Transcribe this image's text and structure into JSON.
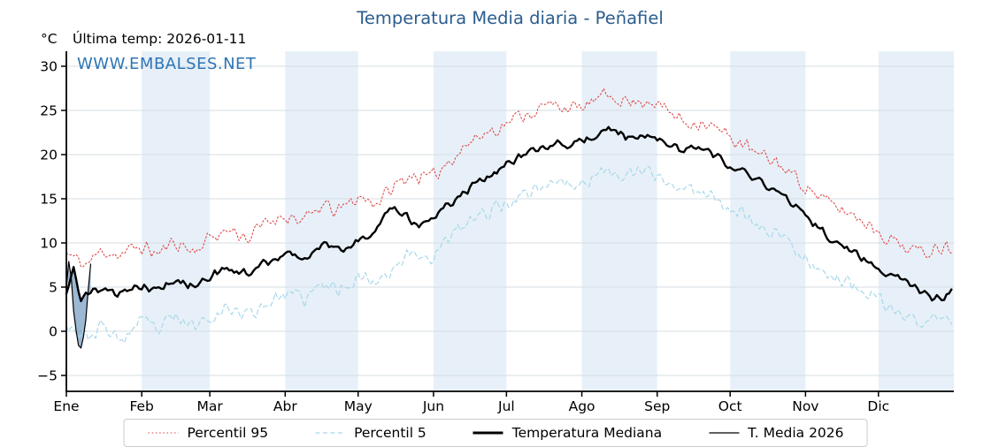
{
  "chart_data": {
    "type": "line",
    "title": "Temperatura Media diaria - Peñafiel",
    "ylabel": "°C",
    "last_temp_label": "Última temp: 2026-01-11",
    "watermark": "WWW.EMBALSES.NET",
    "x_months": [
      "Ene",
      "Feb",
      "Mar",
      "Abr",
      "May",
      "Jun",
      "Jul",
      "Ago",
      "Sep",
      "Oct",
      "Nov",
      "Dic"
    ],
    "month_start_days": [
      0,
      31,
      59,
      90,
      120,
      151,
      181,
      212,
      243,
      273,
      304,
      334
    ],
    "days_in_year": 365,
    "ylim": [
      -6.8,
      31.7
    ],
    "yticks": [
      -5,
      0,
      5,
      10,
      15,
      20,
      25,
      30
    ],
    "grid": true,
    "band_months": [
      1,
      3,
      5,
      7,
      9,
      11
    ],
    "band_color": "#e7f0f8",
    "grid_color": "#d5dce3",
    "legend_position": "bottom",
    "series": [
      {
        "name": "Percentil 95",
        "color": "#e04848",
        "style": "dotted",
        "width": 1.1,
        "jitter": 1.1,
        "control_points": [
          [
            0,
            8.8
          ],
          [
            8,
            7.5
          ],
          [
            15,
            9.2
          ],
          [
            22,
            8.6
          ],
          [
            30,
            9.6
          ],
          [
            38,
            8.8
          ],
          [
            45,
            10.2
          ],
          [
            52,
            9.0
          ],
          [
            60,
            10.8
          ],
          [
            68,
            11.5
          ],
          [
            75,
            10.5
          ],
          [
            82,
            12.3
          ],
          [
            90,
            13.2
          ],
          [
            98,
            12.4
          ],
          [
            105,
            14.2
          ],
          [
            112,
            13.6
          ],
          [
            120,
            15.2
          ],
          [
            128,
            14.6
          ],
          [
            135,
            16.4
          ],
          [
            142,
            17.8
          ],
          [
            150,
            17.2
          ],
          [
            158,
            19.6
          ],
          [
            165,
            21.2
          ],
          [
            172,
            22.4
          ],
          [
            180,
            23.4
          ],
          [
            188,
            24.6
          ],
          [
            195,
            25.2
          ],
          [
            202,
            25.8
          ],
          [
            210,
            25.0
          ],
          [
            218,
            26.2
          ],
          [
            225,
            26.8
          ],
          [
            232,
            25.8
          ],
          [
            240,
            26.3
          ],
          [
            248,
            24.8
          ],
          [
            255,
            23.6
          ],
          [
            262,
            23.8
          ],
          [
            270,
            22.4
          ],
          [
            278,
            21.2
          ],
          [
            285,
            19.8
          ],
          [
            292,
            19.2
          ],
          [
            300,
            17.4
          ],
          [
            308,
            15.6
          ],
          [
            315,
            14.2
          ],
          [
            322,
            13.4
          ],
          [
            330,
            12.2
          ],
          [
            338,
            10.6
          ],
          [
            345,
            9.6
          ],
          [
            352,
            8.8
          ],
          [
            358,
            9.8
          ],
          [
            364,
            9.4
          ]
        ]
      },
      {
        "name": "Percentil 5",
        "color": "#a8d8ea",
        "style": "dashed",
        "width": 1.2,
        "jitter": 1.1,
        "control_points": [
          [
            0,
            1.2
          ],
          [
            8,
            -0.8
          ],
          [
            15,
            0.6
          ],
          [
            22,
            -1.2
          ],
          [
            30,
            1.0
          ],
          [
            38,
            0.2
          ],
          [
            45,
            1.6
          ],
          [
            52,
            0.4
          ],
          [
            60,
            2.0
          ],
          [
            68,
            2.6
          ],
          [
            75,
            1.8
          ],
          [
            82,
            3.2
          ],
          [
            90,
            4.2
          ],
          [
            98,
            3.6
          ],
          [
            105,
            5.2
          ],
          [
            112,
            4.8
          ],
          [
            120,
            6.2
          ],
          [
            128,
            5.8
          ],
          [
            135,
            7.4
          ],
          [
            142,
            8.8
          ],
          [
            150,
            8.4
          ],
          [
            158,
            10.6
          ],
          [
            165,
            12.2
          ],
          [
            172,
            13.4
          ],
          [
            180,
            14.4
          ],
          [
            188,
            15.6
          ],
          [
            195,
            16.4
          ],
          [
            202,
            17.0
          ],
          [
            210,
            16.4
          ],
          [
            218,
            17.6
          ],
          [
            225,
            18.4
          ],
          [
            232,
            17.6
          ],
          [
            240,
            18.0
          ],
          [
            248,
            16.8
          ],
          [
            255,
            15.8
          ],
          [
            262,
            16.0
          ],
          [
            270,
            14.6
          ],
          [
            278,
            13.4
          ],
          [
            285,
            11.8
          ],
          [
            292,
            11.2
          ],
          [
            300,
            9.4
          ],
          [
            308,
            7.4
          ],
          [
            315,
            6.2
          ],
          [
            322,
            5.4
          ],
          [
            330,
            4.2
          ],
          [
            338,
            2.6
          ],
          [
            345,
            1.8
          ],
          [
            352,
            0.8
          ],
          [
            358,
            1.6
          ],
          [
            364,
            1.0
          ]
        ]
      },
      {
        "name": "Temperatura Mediana",
        "color": "#000000",
        "style": "solid",
        "width": 2.4,
        "jitter": 0.6,
        "control_points": [
          [
            0,
            4.6
          ],
          [
            3,
            6.9
          ],
          [
            6,
            3.6
          ],
          [
            10,
            4.4
          ],
          [
            15,
            4.9
          ],
          [
            22,
            4.2
          ],
          [
            30,
            5.2
          ],
          [
            38,
            4.8
          ],
          [
            45,
            5.8
          ],
          [
            52,
            5.2
          ],
          [
            60,
            6.4
          ],
          [
            68,
            7.0
          ],
          [
            75,
            6.4
          ],
          [
            82,
            7.8
          ],
          [
            90,
            8.6
          ],
          [
            98,
            8.2
          ],
          [
            105,
            9.6
          ],
          [
            112,
            9.2
          ],
          [
            120,
            10.4
          ],
          [
            127,
            11.2
          ],
          [
            133,
            14.0
          ],
          [
            139,
            13.2
          ],
          [
            145,
            11.8
          ],
          [
            152,
            13.2
          ],
          [
            160,
            15.0
          ],
          [
            168,
            16.6
          ],
          [
            176,
            18.0
          ],
          [
            184,
            19.4
          ],
          [
            192,
            20.6
          ],
          [
            200,
            21.2
          ],
          [
            208,
            21.0
          ],
          [
            216,
            22.0
          ],
          [
            224,
            22.9
          ],
          [
            231,
            22.0
          ],
          [
            238,
            22.4
          ],
          [
            246,
            21.6
          ],
          [
            253,
            20.6
          ],
          [
            260,
            20.9
          ],
          [
            268,
            19.6
          ],
          [
            276,
            18.4
          ],
          [
            284,
            17.0
          ],
          [
            291,
            16.2
          ],
          [
            299,
            14.6
          ],
          [
            307,
            12.4
          ],
          [
            314,
            10.6
          ],
          [
            321,
            9.3
          ],
          [
            329,
            8.0
          ],
          [
            337,
            6.7
          ],
          [
            344,
            5.7
          ],
          [
            351,
            4.5
          ],
          [
            357,
            3.7
          ],
          [
            361,
            3.4
          ],
          [
            364,
            4.8
          ]
        ]
      },
      {
        "name": "T. Media 2026",
        "color": "#000000",
        "style": "solid",
        "width": 1.2,
        "jitter": 0,
        "fill_color": "#4b7fae",
        "fill_opacity": 0.55,
        "daily": [
          [
            0,
            5.0
          ],
          [
            1,
            7.9
          ],
          [
            2,
            6.1
          ],
          [
            3,
            2.3
          ],
          [
            4,
            0.1
          ],
          [
            5,
            -1.6
          ],
          [
            6,
            -1.9
          ],
          [
            7,
            -0.7
          ],
          [
            8,
            1.3
          ],
          [
            9,
            4.7
          ],
          [
            10,
            7.6
          ]
        ]
      }
    ]
  }
}
